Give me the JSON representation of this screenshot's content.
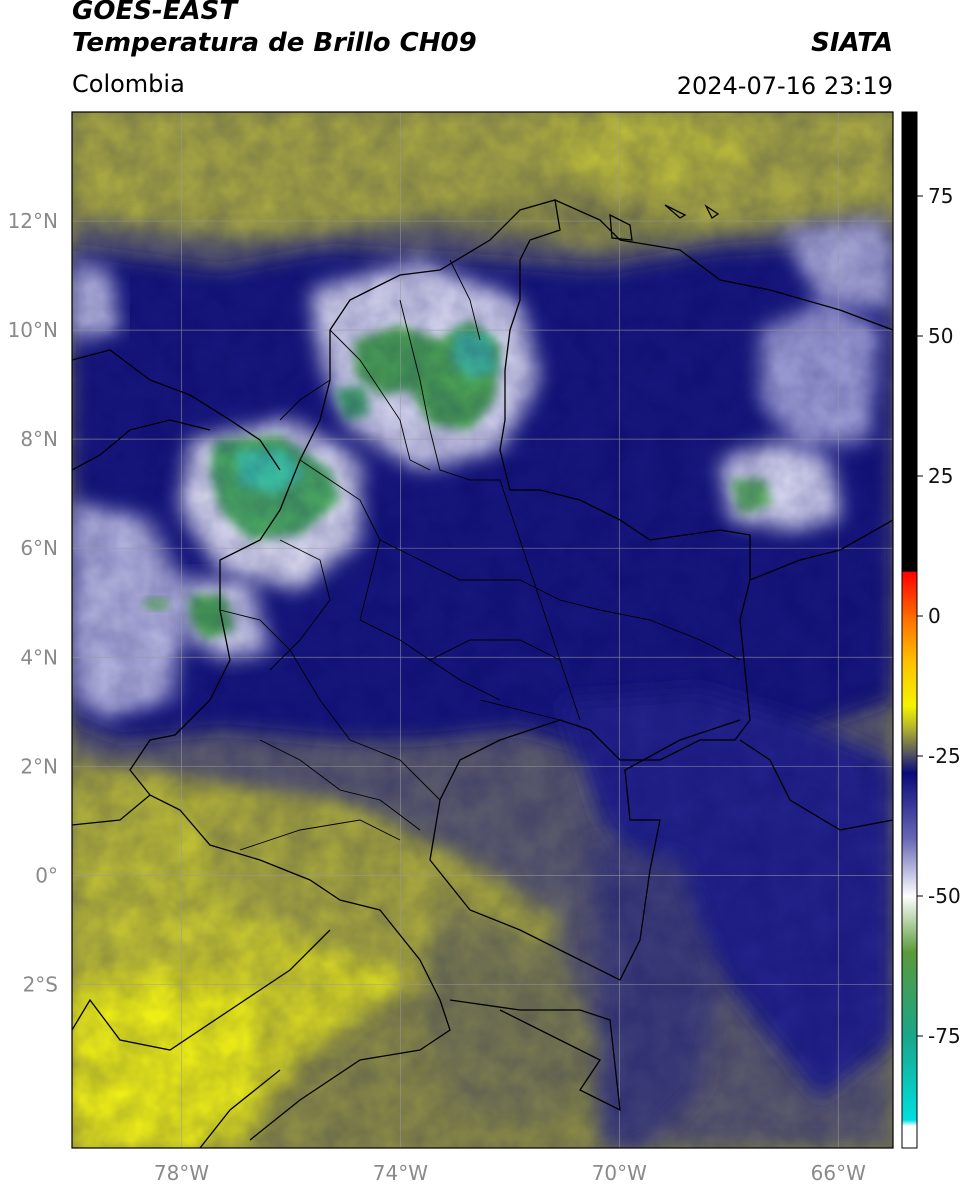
{
  "header": {
    "satellite": "GOES-EAST",
    "product": "Temperatura de Brillo CH09",
    "region": "Colombia",
    "agency": "SIATA",
    "datetime": "2024-07-16 23:19"
  },
  "map": {
    "lon_range": [
      -80,
      -65
    ],
    "lat_range": [
      -5,
      14
    ],
    "lat_ticks": [
      {
        "value": 12,
        "label": "12°N"
      },
      {
        "value": 10,
        "label": "10°N"
      },
      {
        "value": 8,
        "label": "8°N"
      },
      {
        "value": 6,
        "label": "6°N"
      },
      {
        "value": 4,
        "label": "4°N"
      },
      {
        "value": 2,
        "label": "2°N"
      },
      {
        "value": 0,
        "label": "0°"
      },
      {
        "value": -2,
        "label": "2°S"
      }
    ],
    "lon_ticks": [
      {
        "value": -78,
        "label": "78°W"
      },
      {
        "value": -74,
        "label": "74°W"
      },
      {
        "value": -70,
        "label": "70°W"
      },
      {
        "value": -66,
        "label": "66°W"
      }
    ],
    "gridlines": true
  },
  "colorbar": {
    "range": [
      -95,
      90
    ],
    "ticks": [
      {
        "value": 75,
        "label": "75"
      },
      {
        "value": 50,
        "label": "50"
      },
      {
        "value": 25,
        "label": "25"
      },
      {
        "value": 0,
        "label": "0"
      },
      {
        "value": -25,
        "label": "-25"
      },
      {
        "value": -50,
        "label": "-50"
      },
      {
        "value": -75,
        "label": "-75"
      }
    ],
    "stops": [
      {
        "value": 90,
        "color": "#000000"
      },
      {
        "value": 8,
        "color": "#000000"
      },
      {
        "value": 7.9,
        "color": "#ff0000"
      },
      {
        "value": 0,
        "color": "#ff6a00"
      },
      {
        "value": -8,
        "color": "#ffc000"
      },
      {
        "value": -16,
        "color": "#f4f400"
      },
      {
        "value": -20,
        "color": "#b2b22e"
      },
      {
        "value": -25,
        "color": "#4a4a66"
      },
      {
        "value": -28,
        "color": "#0a0a7a"
      },
      {
        "value": -40,
        "color": "#6a6ab8"
      },
      {
        "value": -50,
        "color": "#ffffff"
      },
      {
        "value": -60,
        "color": "#5a9a3a"
      },
      {
        "value": -75,
        "color": "#1aa68a"
      },
      {
        "value": -90,
        "color": "#00e0e0"
      },
      {
        "value": -91,
        "color": "#ffffff"
      },
      {
        "value": -95,
        "color": "#ffffff"
      }
    ]
  },
  "colors": {
    "warm_surface": "#e6e620",
    "olive": "#9a9a40",
    "gray_cloud": "#55556a",
    "deep_blue": "#1a1a85",
    "cold_white": "#e8e8f4",
    "cold_green": "#3e9a5a",
    "coldest_teal": "#3cb8a2",
    "border_line": "#000000",
    "grid_line": "#9a9aa0"
  }
}
